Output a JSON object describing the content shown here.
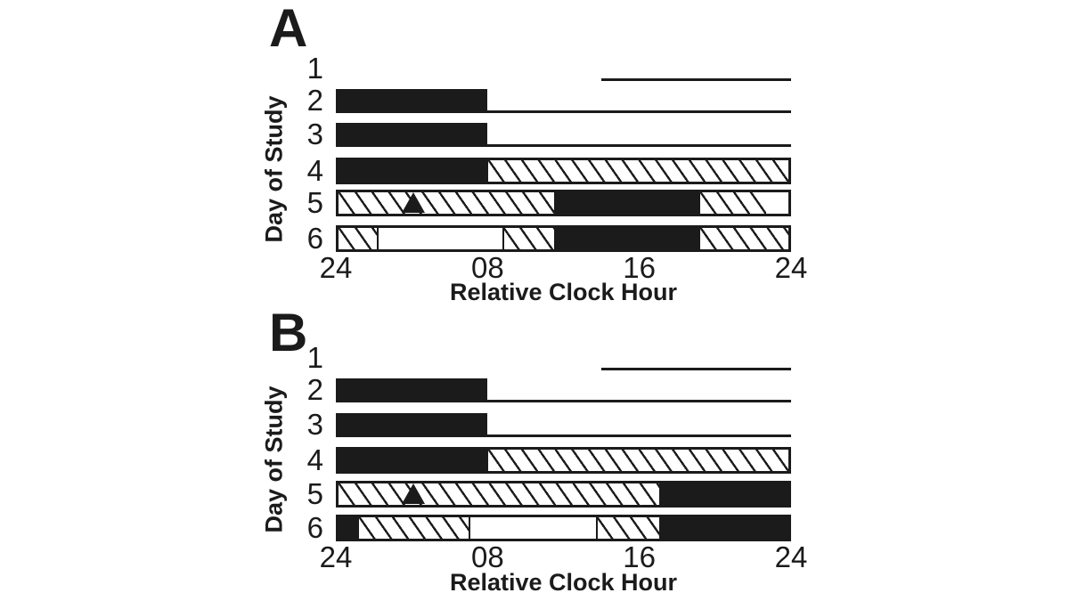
{
  "figure": {
    "background": "#ffffff",
    "ink": "#1b1b1b"
  },
  "chart_data": [
    {
      "type": "timeline",
      "panel": "A",
      "xlabel": "Relative Clock Hour",
      "ylabel": "Day of Study",
      "xlim": [
        0,
        24
      ],
      "x_ticks": [
        {
          "hour": 0,
          "label": "24"
        },
        {
          "hour": 8,
          "label": "08"
        },
        {
          "hour": 16,
          "label": "16"
        },
        {
          "hour": 24,
          "label": "24"
        }
      ],
      "rows": [
        {
          "day": "1",
          "kind": "line",
          "segments": [
            {
              "type": "line",
              "start": 14,
              "end": 24
            }
          ]
        },
        {
          "day": "2",
          "kind": "bar-open",
          "segments": [
            {
              "type": "black",
              "start": 0,
              "end": 8
            },
            {
              "type": "line",
              "start": 8,
              "end": 24
            }
          ]
        },
        {
          "day": "3",
          "kind": "bar-open",
          "segments": [
            {
              "type": "black",
              "start": 0,
              "end": 8
            },
            {
              "type": "line",
              "start": 8,
              "end": 24
            }
          ]
        },
        {
          "day": "4",
          "kind": "bar-boxed",
          "segments": [
            {
              "type": "black",
              "start": 0,
              "end": 8
            },
            {
              "type": "hatch",
              "start": 8,
              "end": 24
            }
          ]
        },
        {
          "day": "5",
          "kind": "bar-boxed",
          "segments": [
            {
              "type": "hatch",
              "start": 0,
              "end": 11.5
            },
            {
              "type": "black",
              "start": 11.5,
              "end": 19.3
            },
            {
              "type": "hatch",
              "start": 19.3,
              "end": 22.8
            },
            {
              "type": "white",
              "start": 22.8,
              "end": 24
            }
          ],
          "marker": {
            "shape": "triangle-up",
            "hour": 4
          }
        },
        {
          "day": "6",
          "kind": "bar-boxed",
          "segments": [
            {
              "type": "hatch",
              "start": 0,
              "end": 2.1
            },
            {
              "type": "white",
              "start": 2.1,
              "end": 8.8,
              "sep": true
            },
            {
              "type": "hatch",
              "start": 8.8,
              "end": 11.5,
              "sep": true
            },
            {
              "type": "black",
              "start": 11.5,
              "end": 19.3
            },
            {
              "type": "hatch",
              "start": 19.3,
              "end": 24
            }
          ]
        }
      ]
    },
    {
      "type": "timeline",
      "panel": "B",
      "xlabel": "Relative Clock Hour",
      "ylabel": "Day of Study",
      "xlim": [
        0,
        24
      ],
      "x_ticks": [
        {
          "hour": 0,
          "label": "24"
        },
        {
          "hour": 8,
          "label": "08"
        },
        {
          "hour": 16,
          "label": "16"
        },
        {
          "hour": 24,
          "label": "24"
        }
      ],
      "rows": [
        {
          "day": "1",
          "kind": "line",
          "segments": [
            {
              "type": "line",
              "start": 14,
              "end": 24
            }
          ]
        },
        {
          "day": "2",
          "kind": "bar-open",
          "segments": [
            {
              "type": "black",
              "start": 0,
              "end": 8
            },
            {
              "type": "line",
              "start": 8,
              "end": 24
            }
          ]
        },
        {
          "day": "3",
          "kind": "bar-open",
          "segments": [
            {
              "type": "black",
              "start": 0,
              "end": 8
            },
            {
              "type": "line",
              "start": 8,
              "end": 24
            }
          ]
        },
        {
          "day": "4",
          "kind": "bar-boxed",
          "segments": [
            {
              "type": "black",
              "start": 0,
              "end": 8
            },
            {
              "type": "hatch",
              "start": 8,
              "end": 24
            }
          ]
        },
        {
          "day": "5",
          "kind": "bar-boxed",
          "segments": [
            {
              "type": "hatch",
              "start": 0,
              "end": 17.1
            },
            {
              "type": "black",
              "start": 17.1,
              "end": 24
            }
          ],
          "marker": {
            "shape": "triangle-up",
            "hour": 4
          }
        },
        {
          "day": "6",
          "kind": "bar-boxed",
          "segments": [
            {
              "type": "black",
              "start": 0,
              "end": 1.1
            },
            {
              "type": "hatch",
              "start": 1.1,
              "end": 7
            },
            {
              "type": "white",
              "start": 7,
              "end": 13.8,
              "sep": true
            },
            {
              "type": "hatch",
              "start": 13.8,
              "end": 17.1,
              "sep": true
            },
            {
              "type": "black",
              "start": 17.1,
              "end": 24
            }
          ]
        }
      ]
    }
  ]
}
